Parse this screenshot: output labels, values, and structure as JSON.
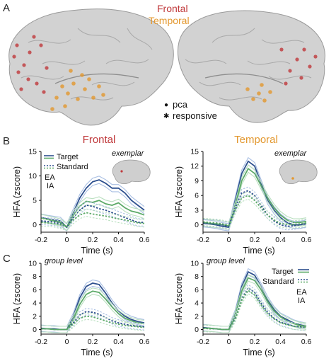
{
  "panel_labels": {
    "a": "A",
    "b": "B",
    "c": "C"
  },
  "brain_legend": {
    "frontal": "Frontal",
    "temporal": "Temporal",
    "pca": "pca",
    "responsive": "responsive",
    "dot_glyph": "●",
    "star_glyph": "✱"
  },
  "colors": {
    "frontal": "#c0393b",
    "temporal": "#e3982f",
    "ea_dark": "#2d4f8e",
    "ea_light": "#a9bfe3",
    "ia_dark": "#5daa68",
    "ia_light": "#b9dfbf",
    "brain": "#cfcfcf"
  },
  "column_titles": {
    "frontal": "Frontal",
    "temporal": "Temporal"
  },
  "legend": {
    "target": "Target",
    "standard": "Standard",
    "ea": "EA",
    "ia": "IA"
  },
  "annotations": {
    "exemplar": "exemplar",
    "group_level": "group level"
  },
  "chart_data": [
    {
      "type": "line",
      "panel": "B",
      "title": "Frontal",
      "note": "exemplar",
      "xlabel": "Time (s)",
      "ylabel": "HFA (zscore)",
      "xlim": [
        -0.2,
        0.6
      ],
      "ylim": [
        -1.5,
        15
      ],
      "xticks": [
        -0.2,
        0,
        0.2,
        0.4,
        0.6
      ],
      "xtick_labels": [
        "-0.2",
        "0",
        "0.2",
        "0.4",
        "0.6"
      ],
      "yticks": [
        0,
        5,
        10,
        15
      ],
      "ytick_labels": [
        "0",
        "5",
        "10",
        "15"
      ],
      "x": [
        -0.2,
        -0.15,
        -0.1,
        -0.05,
        0,
        0.05,
        0.1,
        0.15,
        0.2,
        0.25,
        0.3,
        0.35,
        0.4,
        0.45,
        0.5,
        0.55,
        0.6
      ],
      "series": [
        {
          "name": "EA Target",
          "group": "EA",
          "condition": "Target",
          "values": [
            1.5,
            1.2,
            1,
            0.8,
            -0.5,
            2.5,
            5.5,
            7.5,
            8.8,
            9.2,
            8.5,
            7.5,
            7.5,
            6.5,
            5,
            4,
            3
          ]
        },
        {
          "name": "IA Target",
          "group": "IA",
          "condition": "Target",
          "values": [
            1.4,
            1.1,
            0.8,
            0.5,
            -0.4,
            2,
            3.8,
            4.8,
            4.6,
            5,
            4.3,
            4,
            4.5,
            3.5,
            2.8,
            2.5,
            2
          ]
        },
        {
          "name": "EA Standard",
          "group": "EA",
          "condition": "Standard",
          "values": [
            0.8,
            0.7,
            0.6,
            0.2,
            -0.5,
            1.5,
            3,
            4,
            3.8,
            3.3,
            3,
            2.5,
            2,
            1.5,
            1,
            0.5,
            0.5
          ]
        },
        {
          "name": "IA Standard",
          "group": "IA",
          "condition": "Standard",
          "values": [
            0.5,
            0.4,
            0.3,
            0,
            -0.4,
            1,
            2,
            2.5,
            2.2,
            2,
            1.8,
            1.5,
            1.2,
            1,
            0.7,
            0.4,
            0.3
          ]
        }
      ]
    },
    {
      "type": "line",
      "panel": "B",
      "title": "Temporal",
      "note": "exemplar",
      "xlabel": "Time (s)",
      "ylabel": "HFA (zscore)",
      "xlim": [
        -0.2,
        0.6
      ],
      "ylim": [
        -1.5,
        15
      ],
      "xticks": [
        -0.2,
        0,
        0.2,
        0.4,
        0.6
      ],
      "xtick_labels": [
        "-0.2",
        "0",
        "0.2",
        "0.4",
        "0.6"
      ],
      "yticks": [
        0,
        3,
        6,
        9,
        12,
        15
      ],
      "ytick_labels": [
        "0",
        "3",
        "6",
        "9",
        "12",
        "15"
      ],
      "x": [
        -0.2,
        -0.15,
        -0.1,
        -0.05,
        0,
        0.05,
        0.1,
        0.15,
        0.2,
        0.25,
        0.3,
        0.35,
        0.4,
        0.45,
        0.5,
        0.55,
        0.6
      ],
      "series": [
        {
          "name": "EA Target",
          "group": "EA",
          "condition": "Target",
          "values": [
            0.3,
            0.2,
            0,
            -0.3,
            -0.5,
            5,
            10.5,
            13,
            12,
            8.5,
            5,
            3,
            1.5,
            0.5,
            0,
            0,
            0.3
          ]
        },
        {
          "name": "IA Target",
          "group": "IA",
          "condition": "Target",
          "values": [
            0.5,
            0.3,
            0.2,
            0,
            -0.2,
            4,
            9,
            11.5,
            10.5,
            8,
            5.5,
            3.5,
            2,
            1,
            0.5,
            0.5,
            0.7
          ]
        },
        {
          "name": "EA Standard",
          "group": "EA",
          "condition": "Standard",
          "values": [
            0.5,
            0.4,
            0.3,
            0,
            -0.3,
            3.5,
            6.5,
            7,
            6,
            4,
            2,
            0.8,
            0,
            -0.3,
            -0.2,
            0,
            0.2
          ]
        },
        {
          "name": "IA Standard",
          "group": "IA",
          "condition": "Standard",
          "values": [
            0.6,
            0.5,
            0.4,
            0.2,
            -0.1,
            3,
            5.5,
            6,
            5,
            3.5,
            2,
            1,
            0.3,
            0.1,
            0.1,
            0.2,
            0.4
          ]
        }
      ]
    },
    {
      "type": "line",
      "panel": "C",
      "title": "",
      "note": "group level",
      "xlabel": "Time (s)",
      "ylabel": "HFA (zscore)",
      "xlim": [
        -0.2,
        0.6
      ],
      "ylim": [
        -0.7,
        10
      ],
      "xticks": [
        -0.2,
        0,
        0.2,
        0.4,
        0.6
      ],
      "xtick_labels": [
        "-0.2",
        "0",
        "0.2",
        "0.4",
        "0.6"
      ],
      "yticks": [
        0,
        2,
        4,
        6,
        8,
        10
      ],
      "ytick_labels": [
        "0",
        "2",
        "4",
        "6",
        "8",
        "10"
      ],
      "x": [
        -0.2,
        -0.15,
        -0.1,
        -0.05,
        0,
        0.05,
        0.1,
        0.15,
        0.2,
        0.25,
        0.3,
        0.35,
        0.4,
        0.45,
        0.5,
        0.55,
        0.6
      ],
      "series": [
        {
          "name": "EA Target",
          "group": "EA",
          "condition": "Target",
          "values": [
            0.2,
            0.1,
            0.1,
            0,
            0,
            2,
            4.8,
            6.5,
            7,
            6.8,
            5.5,
            4,
            2.8,
            2,
            1.5,
            1.2,
            1
          ]
        },
        {
          "name": "IA Target",
          "group": "IA",
          "condition": "Target",
          "values": [
            0.1,
            0.1,
            0,
            0,
            0,
            1.5,
            3.8,
            5.3,
            5.8,
            5.6,
            4.6,
            3.4,
            2.4,
            1.7,
            1.3,
            1,
            0.9
          ]
        },
        {
          "name": "EA Standard",
          "group": "EA",
          "condition": "Standard",
          "values": [
            0.1,
            0.1,
            0,
            0,
            0,
            1,
            2.2,
            2.7,
            2.6,
            2.3,
            1.8,
            1.3,
            1,
            0.8,
            0.6,
            0.5,
            0.4
          ]
        },
        {
          "name": "IA Standard",
          "group": "IA",
          "condition": "Standard",
          "values": [
            0.1,
            0.1,
            0,
            0,
            0,
            0.8,
            1.7,
            2,
            1.9,
            1.6,
            1.3,
            1,
            0.8,
            0.6,
            0.5,
            0.4,
            0.3
          ]
        }
      ]
    },
    {
      "type": "line",
      "panel": "C",
      "title": "",
      "note": "group level",
      "xlabel": "Time (s)",
      "ylabel": "HFA (zscore)",
      "xlim": [
        -0.2,
        0.6
      ],
      "ylim": [
        -0.7,
        10
      ],
      "xticks": [
        -0.2,
        0,
        0.2,
        0.4,
        0.6
      ],
      "xtick_labels": [
        "-0.2",
        "0",
        "0.2",
        "0.4",
        "0.6"
      ],
      "yticks": [
        0,
        2,
        4,
        6,
        8,
        10
      ],
      "ytick_labels": [
        "0",
        "2",
        "4",
        "6",
        "8",
        "10"
      ],
      "x": [
        -0.2,
        -0.15,
        -0.1,
        -0.05,
        0,
        0.05,
        0.1,
        0.15,
        0.2,
        0.25,
        0.3,
        0.35,
        0.4,
        0.45,
        0.5,
        0.55,
        0.6
      ],
      "series": [
        {
          "name": "EA Target",
          "group": "EA",
          "condition": "Target",
          "values": [
            0.3,
            0.2,
            0.1,
            0,
            0,
            2.5,
            6.5,
            8.7,
            8.2,
            6.5,
            4.5,
            3,
            2,
            1.5,
            1,
            0.7,
            0.5
          ]
        },
        {
          "name": "IA Target",
          "group": "IA",
          "condition": "Target",
          "values": [
            0.2,
            0.2,
            0.1,
            0,
            0,
            2.2,
            5.8,
            7.8,
            7.4,
            6,
            4.2,
            2.8,
            1.9,
            1.3,
            0.9,
            0.6,
            0.5
          ]
        },
        {
          "name": "EA Standard",
          "group": "EA",
          "condition": "Standard",
          "values": [
            0.2,
            0.1,
            0.1,
            0,
            0,
            1.8,
            4.8,
            6.3,
            5.6,
            4,
            2.6,
            1.7,
            1.1,
            0.8,
            0.5,
            0.4,
            0.3
          ]
        },
        {
          "name": "IA Standard",
          "group": "IA",
          "condition": "Standard",
          "values": [
            0.2,
            0.1,
            0.1,
            0,
            0,
            1.6,
            4.4,
            5.9,
            5.2,
            3.7,
            2.4,
            1.6,
            1,
            0.7,
            0.5,
            0.4,
            0.3
          ]
        }
      ]
    }
  ]
}
